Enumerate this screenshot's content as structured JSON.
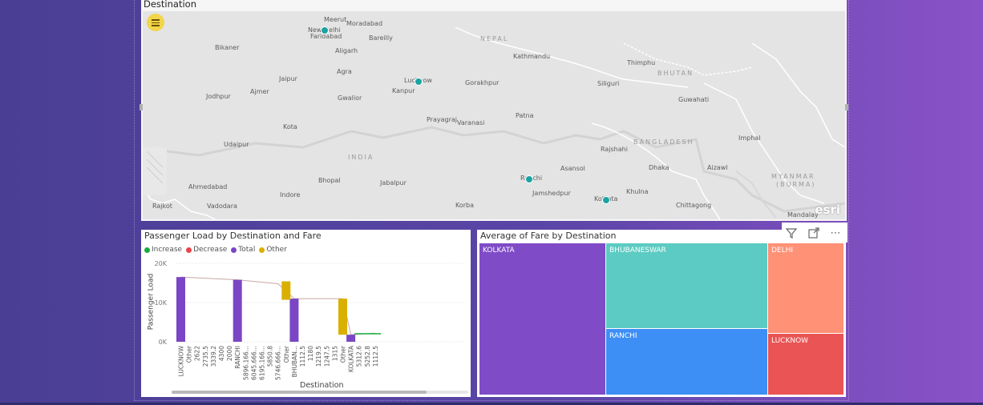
{
  "map": {
    "title": "Destination",
    "cities": [
      {
        "name": "Meerut"
      },
      {
        "name": "Moradabad"
      },
      {
        "name": "New Delhi"
      },
      {
        "name": "Faridabad"
      },
      {
        "name": "Bareilly"
      },
      {
        "name": "Bikaner"
      },
      {
        "name": "Aligarh"
      },
      {
        "name": "Kathmandu"
      },
      {
        "name": "Thimphu"
      },
      {
        "name": "Jaipur"
      },
      {
        "name": "Agra"
      },
      {
        "name": "Lucknow"
      },
      {
        "name": "Gorakhpur"
      },
      {
        "name": "Siliguri"
      },
      {
        "name": "Jodhpur"
      },
      {
        "name": "Ajmer"
      },
      {
        "name": "Gwalior"
      },
      {
        "name": "Kanpur"
      },
      {
        "name": "Guwahati"
      },
      {
        "name": "Prayagraj"
      },
      {
        "name": "Varanasi"
      },
      {
        "name": "Patna"
      },
      {
        "name": "Kota"
      },
      {
        "name": "Imphal"
      },
      {
        "name": "Udaipur"
      },
      {
        "name": "Rajshahi"
      },
      {
        "name": "Asansol"
      },
      {
        "name": "Dhaka"
      },
      {
        "name": "Aizawl"
      },
      {
        "name": "Bhopal"
      },
      {
        "name": "Jabalpur"
      },
      {
        "name": "Ranchi"
      },
      {
        "name": "Ahmedabad"
      },
      {
        "name": "Indore"
      },
      {
        "name": "Jamshedpur"
      },
      {
        "name": "Khulna"
      },
      {
        "name": "Kolkata"
      },
      {
        "name": "Rajkot"
      },
      {
        "name": "Vadodara"
      },
      {
        "name": "Korba"
      },
      {
        "name": "Chittagong"
      },
      {
        "name": "Mandalay"
      }
    ],
    "countries": [
      "NEPAL",
      "BHUTAN",
      "BANGLADESH",
      "INDIA",
      "MYANMAR",
      "(BURMA)"
    ],
    "menu_icon": "hamburger-icon",
    "attribution": "esri"
  },
  "waterfall": {
    "title": "Passenger Load by Destination and Fare",
    "legend": [
      {
        "label": "Increase",
        "color": "#1aab40"
      },
      {
        "label": "Decrease",
        "color": "#e8434c"
      },
      {
        "label": "Total",
        "color": "#7b46c5"
      },
      {
        "label": "Other",
        "color": "#d9b000"
      }
    ],
    "y_ticks": [
      "20K",
      "10K",
      "0K"
    ],
    "ylabel": "Passenger Load",
    "xlabel": "Destination"
  },
  "treemap": {
    "title": "Average of Fare by Destination",
    "tiles": [
      {
        "label": "KOLKATA",
        "color": "#7f4bc7"
      },
      {
        "label": "BHUBANESWAR",
        "color": "#5ccbc3"
      },
      {
        "label": "RANCHI",
        "color": "#3d8ff5"
      },
      {
        "label": "DELHI",
        "color": "#ff9177"
      },
      {
        "label": "LUCKNOW",
        "color": "#ea5454"
      }
    ],
    "header_icons": [
      "filter-icon",
      "focus-mode-icon",
      "more-options-icon"
    ]
  },
  "chart_data": {
    "type": "bar",
    "title": "Passenger Load by Destination and Fare",
    "xlabel": "Destination",
    "ylabel": "Passenger Load",
    "ylim": [
      0,
      20000
    ],
    "categories": [
      "LUCKNOW",
      "Other",
      "2622",
      "2735.5",
      "3339.2",
      "4300",
      "2000",
      "RANCHI",
      "5896.166...",
      "6045.666...",
      "6195.166...",
      "5850.8",
      "5746.666...",
      "Other",
      "BHUBAN...",
      "1112.5",
      "1180",
      "1219.5",
      "1247.5",
      "1315",
      "Other",
      "KOLKATA",
      "5312.6",
      "5252.8",
      "1112.5"
    ],
    "series": [
      {
        "name": "Total",
        "values": [
          16500,
          null,
          null,
          null,
          null,
          null,
          null,
          15800,
          null,
          null,
          null,
          null,
          null,
          null,
          11000,
          null,
          null,
          null,
          null,
          null,
          null,
          1800,
          null,
          null,
          null
        ]
      },
      {
        "name": "Other",
        "values": [
          null,
          null,
          null,
          null,
          null,
          null,
          null,
          null,
          null,
          null,
          null,
          null,
          null,
          4700,
          null,
          null,
          null,
          null,
          null,
          null,
          9200,
          null,
          null,
          null,
          null
        ]
      }
    ]
  }
}
